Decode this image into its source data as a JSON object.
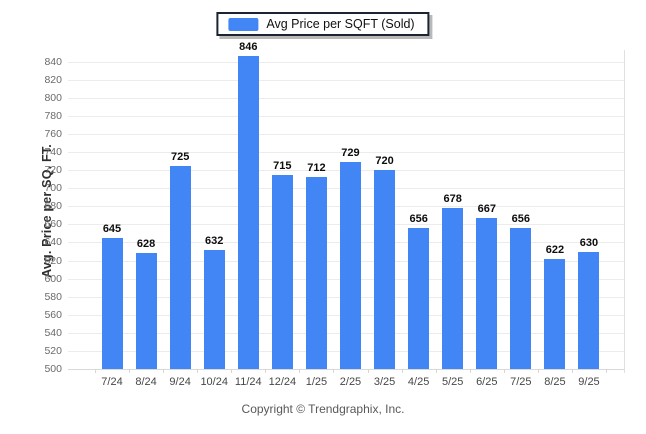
{
  "footer": {
    "copyright": "Copyright © Trendgraphix, Inc."
  },
  "chart_data": {
    "type": "bar",
    "title": "",
    "series_label": "Avg Price per SQFT (Sold)",
    "categories": [
      "7/24",
      "8/24",
      "9/24",
      "10/24",
      "11/24",
      "12/24",
      "1/25",
      "2/25",
      "3/25",
      "4/25",
      "5/25",
      "6/25",
      "7/25",
      "8/25",
      "9/25"
    ],
    "values": [
      645,
      628,
      725,
      632,
      846,
      715,
      712,
      729,
      720,
      656,
      678,
      667,
      656,
      622,
      630
    ],
    "xlabel": "",
    "ylabel": "Avg. Price per SQ. FT.",
    "ylim": [
      500,
      853
    ],
    "yticks": {
      "min": 500,
      "max": 840,
      "step": 20
    },
    "grid": "horizontal",
    "legend_position": "top-center",
    "bar_color": "#4285F4"
  }
}
